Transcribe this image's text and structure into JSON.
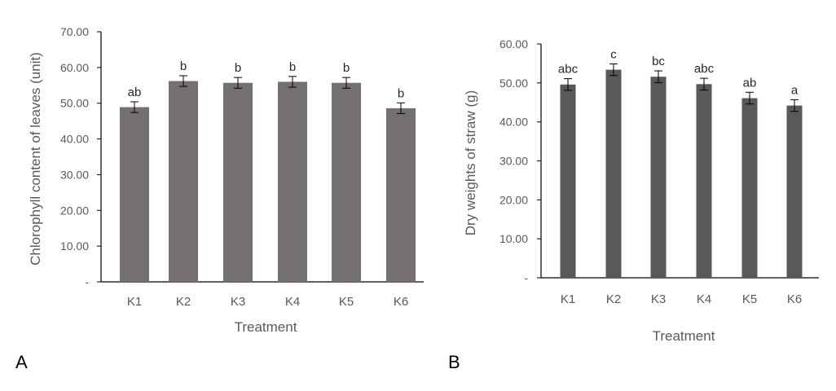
{
  "colors": {
    "bar_a": "#747070",
    "bar_b": "#595959",
    "axis": "#000000",
    "text": "#595959",
    "letters": "#262626"
  },
  "chart_data": [
    {
      "id": "A",
      "panel_label": "A",
      "type": "bar",
      "categories": [
        "K1",
        "K2",
        "K3",
        "K4",
        "K5",
        "K6"
      ],
      "values": [
        48.9,
        56.2,
        55.7,
        56.0,
        55.7,
        48.6
      ],
      "errors": [
        1.5,
        1.5,
        1.5,
        1.5,
        1.5,
        1.5
      ],
      "significance": [
        "ab",
        "b",
        "b",
        "b",
        "b",
        "b"
      ],
      "title": "",
      "xlabel": "Treatment",
      "ylabel": "Chlorophyll content of leaves (unit)",
      "ylim": [
        0,
        70
      ],
      "yticks": [
        0,
        10,
        20,
        30,
        40,
        50,
        60,
        70
      ],
      "ytick_labels": [
        "-",
        "10.00",
        "20.00",
        "30.00",
        "40.00",
        "50.00",
        "60.00",
        "70.00"
      ],
      "grid": false,
      "legend": "none"
    },
    {
      "id": "B",
      "panel_label": "B",
      "type": "bar",
      "categories": [
        "K1",
        "K2",
        "K3",
        "K4",
        "K5",
        "K6"
      ],
      "values": [
        49.6,
        53.4,
        51.6,
        49.7,
        46.1,
        44.2
      ],
      "errors": [
        1.5,
        1.5,
        1.5,
        1.5,
        1.5,
        1.5
      ],
      "significance": [
        "abc",
        "c",
        "bc",
        "abc",
        "ab",
        "a"
      ],
      "title": "",
      "xlabel": "Treatment",
      "ylabel": "Dry weights of straw (g)",
      "ylim": [
        0,
        60
      ],
      "yticks": [
        0,
        10,
        20,
        30,
        40,
        50,
        60
      ],
      "ytick_labels": [
        "-",
        "10.00",
        "20.00",
        "30.00",
        "40.00",
        "50.00",
        "60.00"
      ],
      "grid": false,
      "legend": "none"
    }
  ]
}
